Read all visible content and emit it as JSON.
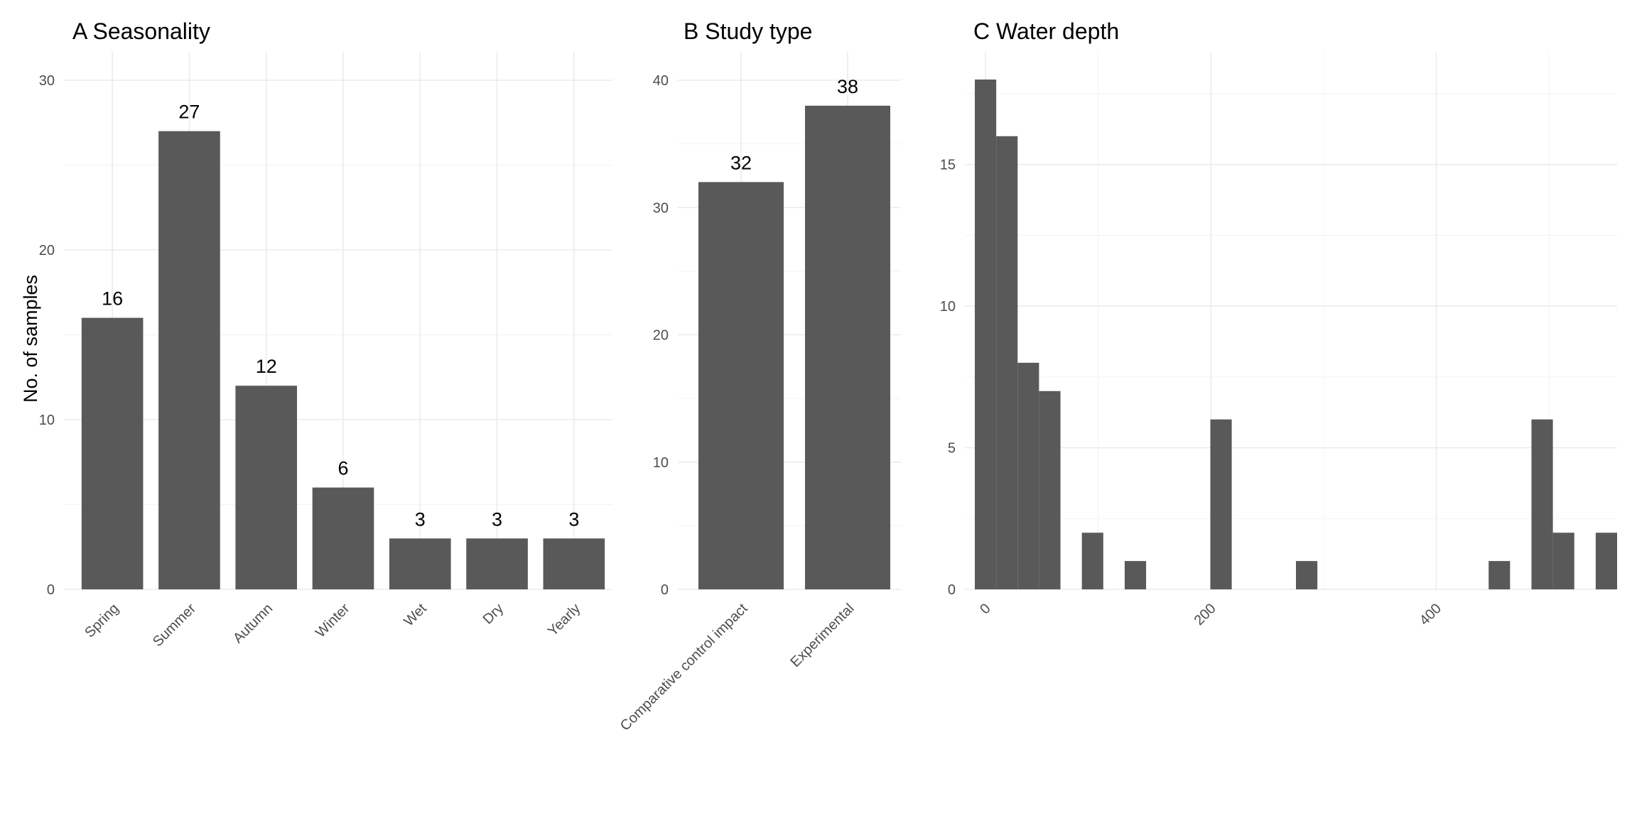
{
  "colors": {
    "bar": "#595959",
    "grid_major": "#ebebeb",
    "grid_minor": "#f2f2f2",
    "tick_text": "#4d4d4d"
  },
  "ylabel": "No. of samples",
  "chart_data": [
    {
      "type": "bar",
      "title": "A  Seasonality",
      "categories": [
        "Spring",
        "Summer",
        "Autumn",
        "Winter",
        "Wet",
        "Dry",
        "Yearly"
      ],
      "values": [
        16,
        27,
        12,
        6,
        3,
        3,
        3
      ],
      "data_labels": [
        "16",
        "27",
        "12",
        "6",
        "3",
        "3",
        "3"
      ],
      "xlabel": "",
      "ylabel": "No. of samples",
      "ylim": [
        0,
        30
      ],
      "yticks": [
        0,
        10,
        20,
        30
      ],
      "grid": true
    },
    {
      "type": "bar",
      "title": "B  Study type",
      "categories": [
        "Comparative control impact",
        "Experimental"
      ],
      "values": [
        32,
        38
      ],
      "data_labels": [
        "32",
        "38"
      ],
      "xlabel": "",
      "ylabel": "",
      "ylim": [
        0,
        40
      ],
      "yticks": [
        0,
        10,
        20,
        30,
        40
      ],
      "grid": true
    },
    {
      "type": "bar",
      "title": "C  Water depth",
      "subtype": "histogram",
      "bins": [
        {
          "x0": -9.5,
          "x1": 9.5,
          "count": 18
        },
        {
          "x0": 9.5,
          "x1": 28.5,
          "count": 16
        },
        {
          "x0": 28.5,
          "x1": 47.5,
          "count": 8
        },
        {
          "x0": 47.5,
          "x1": 66.5,
          "count": 7
        },
        {
          "x0": 85.5,
          "x1": 104.5,
          "count": 2
        },
        {
          "x0": 123.5,
          "x1": 142.5,
          "count": 1
        },
        {
          "x0": 199.5,
          "x1": 218.5,
          "count": 6
        },
        {
          "x0": 275.5,
          "x1": 294.5,
          "count": 1
        },
        {
          "x0": 446.5,
          "x1": 465.5,
          "count": 1
        },
        {
          "x0": 484.5,
          "x1": 503.5,
          "count": 6
        },
        {
          "x0": 503.5,
          "x1": 522.5,
          "count": 2
        },
        {
          "x0": 541.5,
          "x1": 560.5,
          "count": 2
        }
      ],
      "xlabel": "",
      "ylabel": "",
      "xlim": [
        -9.5,
        560.5
      ],
      "ylim": [
        0,
        18
      ],
      "xticks": [
        0,
        200,
        400
      ],
      "yticks": [
        0,
        5,
        10,
        15
      ],
      "grid": true
    }
  ]
}
